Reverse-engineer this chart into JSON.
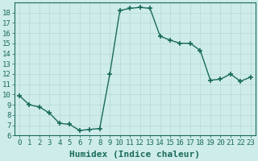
{
  "x": [
    0,
    1,
    2,
    3,
    4,
    5,
    6,
    7,
    8,
    9,
    10,
    11,
    12,
    13,
    14,
    15,
    16,
    17,
    18,
    19,
    20,
    21,
    22,
    23
  ],
  "y": [
    9.9,
    9.0,
    8.8,
    8.2,
    7.2,
    7.1,
    6.5,
    6.6,
    6.7,
    12.0,
    18.2,
    18.4,
    18.5,
    18.4,
    15.7,
    15.3,
    15.0,
    15.0,
    14.3,
    11.4,
    11.5,
    12.0,
    11.3,
    11.7
  ],
  "line_color": "#1a6b5a",
  "marker": "+",
  "marker_size": 5,
  "bg_color": "#ceecea",
  "grid_color": "#b8d8d4",
  "xlabel": "Humidex (Indice chaleur)",
  "xlabel_fontsize": 8,
  "ylim": [
    6,
    19
  ],
  "xlim": [
    -0.5,
    23.5
  ],
  "yticks": [
    6,
    7,
    8,
    9,
    10,
    11,
    12,
    13,
    14,
    15,
    16,
    17,
    18
  ],
  "xticks": [
    0,
    1,
    2,
    3,
    4,
    5,
    6,
    7,
    8,
    9,
    10,
    11,
    12,
    13,
    14,
    15,
    16,
    17,
    18,
    19,
    20,
    21,
    22,
    23
  ],
  "tick_fontsize": 6.5,
  "axis_color": "#1a6b5a",
  "spine_color": "#1a6b5a",
  "linewidth": 1.0
}
